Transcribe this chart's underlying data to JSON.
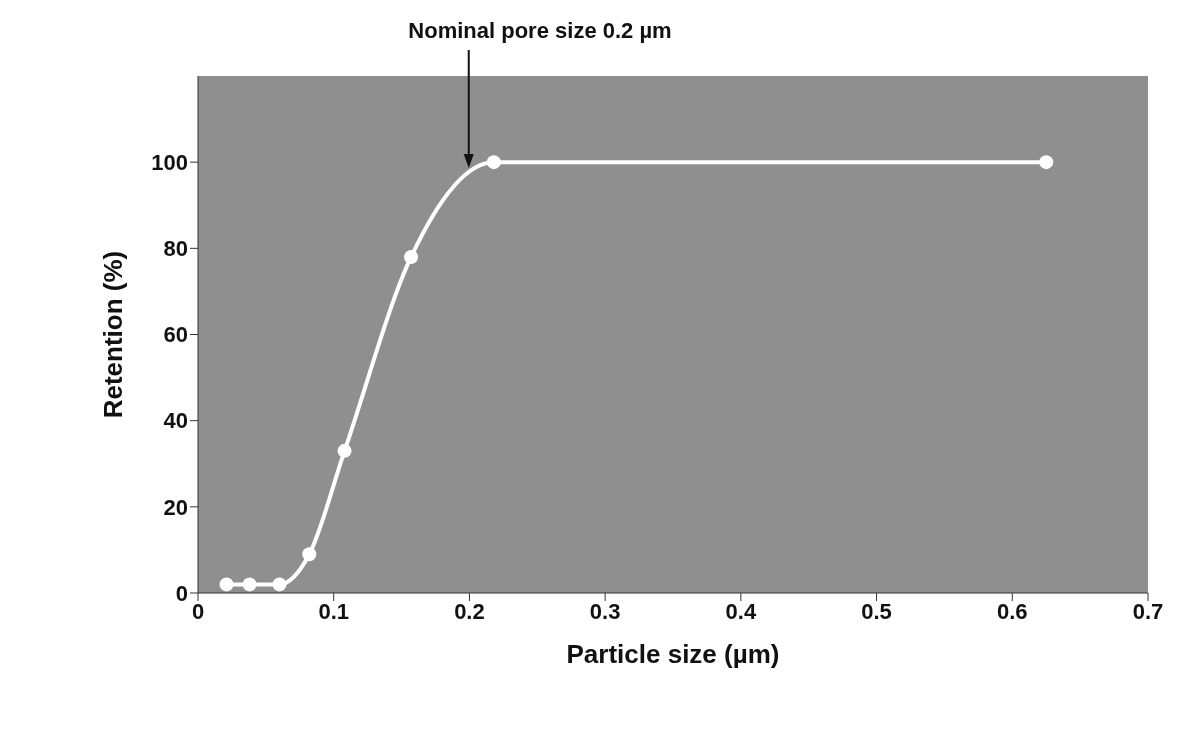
{
  "chart_data": {
    "type": "line",
    "xlabel": "Particle size (µm)",
    "ylabel": "Retention (%)",
    "annotations": [
      "Nominal pore size  0.2 µm"
    ],
    "x": [
      0.021,
      0.038,
      0.06,
      0.082,
      0.108,
      0.157,
      0.218,
      0.625
    ],
    "series": [
      {
        "color": "#ffffff",
        "values": [
          2,
          2,
          2,
          9,
          33,
          78,
          100,
          100
        ]
      }
    ],
    "xlim": [
      0,
      0.7
    ],
    "xticks": [
      0,
      0.1,
      0.2,
      0.3,
      0.4,
      0.5,
      0.6,
      0.7
    ],
    "ylim": [
      0,
      120
    ],
    "yticks": [
      0,
      20,
      40,
      60,
      80,
      100
    ],
    "grid": false,
    "marker": "circle",
    "line_style": "solid"
  }
}
